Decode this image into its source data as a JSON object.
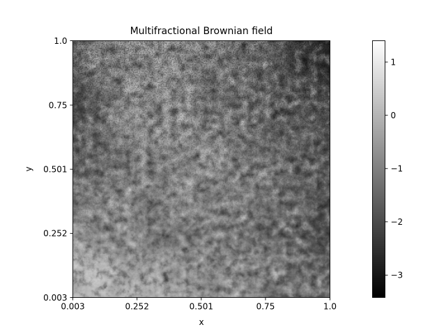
{
  "chart_data": {
    "type": "heatmap",
    "title": "Multifractional Brownian field",
    "xlabel": "x",
    "ylabel": "y",
    "xlim": [
      0.003,
      1.0
    ],
    "ylim": [
      0.003,
      1.0
    ],
    "x_ticks": [
      {
        "value": 0.003,
        "label": "0.003"
      },
      {
        "value": 0.252,
        "label": "0.252"
      },
      {
        "value": 0.501,
        "label": "0.501"
      },
      {
        "value": 0.75,
        "label": "0.75"
      },
      {
        "value": 1.0,
        "label": "1.0"
      }
    ],
    "y_ticks": [
      {
        "value": 0.003,
        "label": "0.003"
      },
      {
        "value": 0.252,
        "label": "0.252"
      },
      {
        "value": 0.501,
        "label": "0.501"
      },
      {
        "value": 0.75,
        "label": "0.75"
      },
      {
        "value": 1.0,
        "label": "1.0"
      }
    ],
    "colormap": "gray",
    "colorbar": {
      "vmin": -3.42,
      "vmax": 1.4,
      "ticks": [
        {
          "value": 1,
          "label": "1"
        },
        {
          "value": 0,
          "label": "0"
        },
        {
          "value": -1,
          "label": "−1"
        },
        {
          "value": -2,
          "label": "−2"
        },
        {
          "value": -3,
          "label": "−3"
        }
      ]
    },
    "field_description": "Rough, high-variance texture near y=1 (dark patches, values to about -3 in top-right), smoothing toward y=0 where values are lighter (about 0.6 in bottom-left) with a darker region (about -1.8) on the right side around y=0.3.",
    "field_samples": {
      "y_levels": [
        1.0,
        0.75,
        0.5,
        0.25,
        0.003
      ],
      "x_levels": [
        0.003,
        0.25,
        0.5,
        0.75,
        1.0
      ],
      "values": [
        [
          -0.8,
          -0.3,
          -0.5,
          -1.2,
          -2.6
        ],
        [
          -1.9,
          -0.2,
          -0.7,
          -1.3,
          -1.8
        ],
        [
          -1.3,
          -0.8,
          -0.5,
          -0.9,
          -1.6
        ],
        [
          -0.4,
          -0.7,
          -0.9,
          -1.1,
          -1.7
        ],
        [
          0.6,
          0.0,
          -0.4,
          -0.8,
          -1.2
        ]
      ]
    }
  }
}
